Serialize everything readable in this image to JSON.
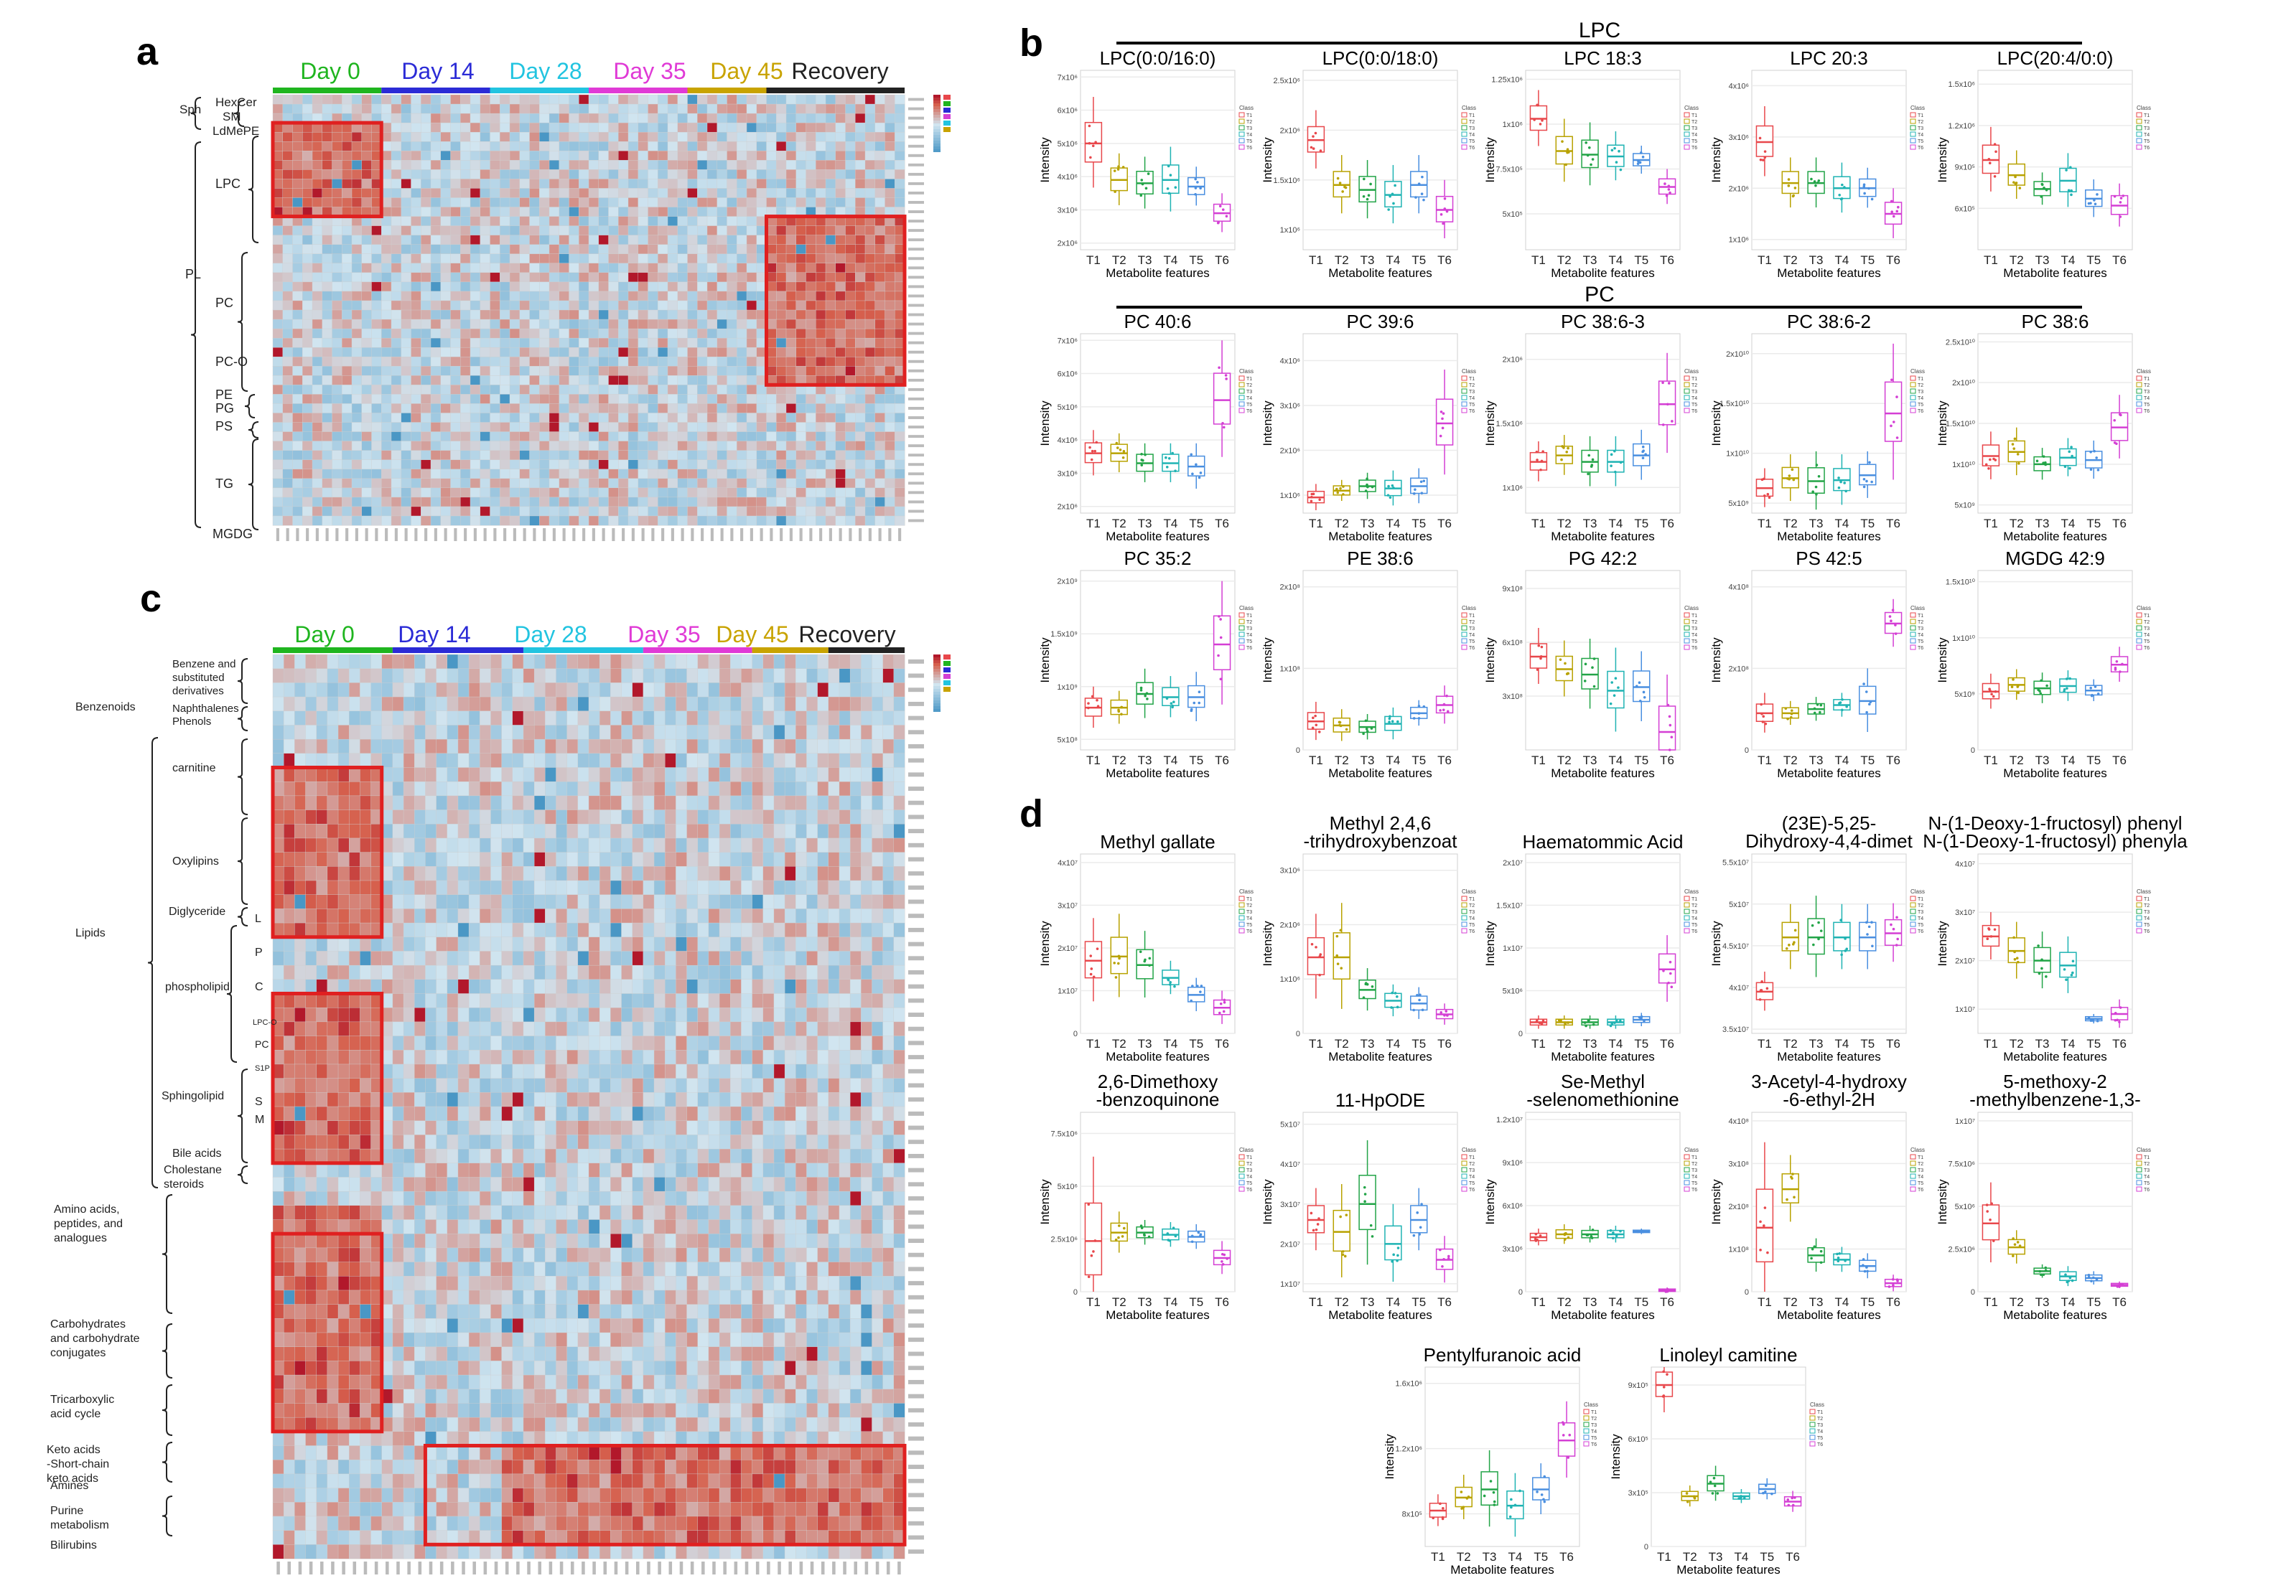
{
  "panels": {
    "a": {
      "letter": "a",
      "groups": [
        {
          "label": "Day 0",
          "color": "#1fb51f"
        },
        {
          "label": "Day 14",
          "color": "#2b2bd6"
        },
        {
          "label": "Day 28",
          "color": "#22c4e0"
        },
        {
          "label": "Day 35",
          "color": "#e03ad6"
        },
        {
          "label": "Day 45",
          "color": "#c8a300"
        },
        {
          "label": "Recovery",
          "color": "#222222"
        }
      ],
      "class_labels": [
        "Sph",
        "HexCer",
        "SM",
        "LdMePE",
        "LPC",
        "PL",
        "PC",
        "PC-O",
        "PE",
        "PG",
        "PS",
        "TG",
        "MGDG"
      ],
      "rows": 46,
      "cols": 64
    },
    "b": {
      "letter": "b",
      "header_lpc": "LPC",
      "header_pc": "PC",
      "x_axis_title": "Metabolite features",
      "y_axis_title": "Intensity",
      "legend_title": "Class",
      "tick_labels": [
        "T1",
        "T2",
        "T3",
        "T4",
        "T5",
        "T6"
      ]
    },
    "c": {
      "letter": "c",
      "groups": [
        {
          "label": "Day 0",
          "color": "#1fb51f"
        },
        {
          "label": "Day 14",
          "color": "#2b2bd6"
        },
        {
          "label": "Day 28",
          "color": "#22c4e0"
        },
        {
          "label": "Day 35",
          "color": "#e03ad6"
        },
        {
          "label": "Day 45",
          "color": "#c8a300"
        },
        {
          "label": "Recovery",
          "color": "#222222"
        }
      ],
      "class_labels": [
        "Benzene and substituted derivatives",
        "Benzenoids",
        "Naphthalenes",
        "Phenols",
        "carnitine",
        "Oxylipins",
        "Lipids",
        "Diglyceride",
        "L",
        "P",
        "phospholipid",
        "C",
        "LPC-O",
        "PC",
        "S1P",
        "Sphingolipid",
        "S",
        "M",
        "Bile acids",
        "Cholestane steroids",
        "Amino acids, peptides, and analogues",
        "Carbohydrates and carbohydrate conjugates",
        "Tricarboxylic acid cycle",
        "Keto acids -Short-chain keto acids",
        "Amines",
        "Purine metabolism",
        "Bilirubins"
      ],
      "rows": 64,
      "cols": 58
    },
    "d": {
      "letter": "d"
    }
  },
  "chart_data": [
    {
      "type": "box",
      "panel": "b",
      "title": "LPC(0:0/16:0)",
      "y_ticks": [
        "2x10⁶",
        "3x10⁶",
        "4x10⁶",
        "5x10⁶",
        "6x10⁶",
        "7x10⁶"
      ],
      "y_tick_values": [
        2,
        3,
        4,
        5,
        6,
        7
      ],
      "ylim": [
        1.8,
        7.2
      ],
      "medians": [
        5.0,
        3.9,
        3.8,
        3.9,
        3.7,
        2.9
      ],
      "spread": [
        0.7,
        0.4,
        0.4,
        0.5,
        0.3,
        0.3
      ]
    },
    {
      "type": "box",
      "panel": "b",
      "title": "LPC(0:0/18:0)",
      "y_ticks": [
        "1x10⁶",
        "1.5x10⁶",
        "2x10⁶",
        "2.5x10⁶"
      ],
      "y_tick_values": [
        1,
        1.5,
        2,
        2.5
      ],
      "ylim": [
        0.8,
        2.6
      ],
      "medians": [
        1.9,
        1.45,
        1.4,
        1.35,
        1.45,
        1.2
      ],
      "spread": [
        0.15,
        0.15,
        0.15,
        0.15,
        0.15,
        0.15
      ]
    },
    {
      "type": "box",
      "panel": "b",
      "title": "LPC 18:3",
      "y_ticks": [
        "5x10⁵",
        "7.5x10⁵",
        "1x10⁶",
        "1.25x10⁶"
      ],
      "y_tick_values": [
        5,
        7.5,
        10,
        12.5
      ],
      "ylim": [
        3,
        13
      ],
      "medians": [
        10.3,
        8.5,
        8.3,
        8.2,
        8.0,
        6.5
      ],
      "spread": [
        0.8,
        0.9,
        0.9,
        0.7,
        0.4,
        0.5
      ]
    },
    {
      "type": "box",
      "panel": "b",
      "title": "LPC 20:3",
      "y_ticks": [
        "1x10⁶",
        "2x10⁶",
        "3x10⁶",
        "4x10⁶"
      ],
      "y_tick_values": [
        1,
        2,
        3,
        4
      ],
      "ylim": [
        0.8,
        4.3
      ],
      "medians": [
        2.9,
        2.1,
        2.1,
        2.0,
        2.0,
        1.5
      ],
      "spread": [
        0.35,
        0.25,
        0.25,
        0.25,
        0.2,
        0.25
      ]
    },
    {
      "type": "box",
      "panel": "b",
      "title": "LPC(20:4/0:0)",
      "y_ticks": [
        "6x10⁵",
        "9x10⁵",
        "1.2x10⁶",
        "1.5x10⁶"
      ],
      "y_tick_values": [
        6,
        9,
        12,
        15
      ],
      "ylim": [
        3,
        16
      ],
      "medians": [
        9.5,
        8.4,
        7.4,
        8.0,
        6.7,
        6.2
      ],
      "spread": [
        1.2,
        0.9,
        0.6,
        1.0,
        0.7,
        0.8
      ]
    },
    {
      "type": "box",
      "panel": "b",
      "title": "PC 40:6",
      "y_ticks": [
        "2x10⁶",
        "3x10⁶",
        "4x10⁶",
        "5x10⁶",
        "6x10⁶",
        "7x10⁶"
      ],
      "y_tick_values": [
        2,
        3,
        4,
        5,
        6,
        7
      ],
      "ylim": [
        1.8,
        7.2
      ],
      "medians": [
        3.6,
        3.6,
        3.3,
        3.3,
        3.2,
        5.2
      ],
      "spread": [
        0.35,
        0.3,
        0.3,
        0.3,
        0.35,
        0.9
      ]
    },
    {
      "type": "box",
      "panel": "b",
      "title": "PC 39:6",
      "y_ticks": [
        "1x10⁶",
        "2x10⁶",
        "3x10⁶",
        "4x10⁶"
      ],
      "y_tick_values": [
        1,
        2,
        3,
        4
      ],
      "ylim": [
        0.6,
        4.6
      ],
      "medians": [
        0.95,
        1.1,
        1.2,
        1.15,
        1.2,
        2.6
      ],
      "spread": [
        0.15,
        0.12,
        0.15,
        0.2,
        0.2,
        0.6
      ]
    },
    {
      "type": "box",
      "panel": "b",
      "title": "PC 38:6-3",
      "y_ticks": [
        "1x10⁶",
        "1.5x10⁶",
        "2x10⁶"
      ],
      "y_tick_values": [
        1,
        1.5,
        2
      ],
      "ylim": [
        0.8,
        2.2
      ],
      "medians": [
        1.2,
        1.25,
        1.2,
        1.2,
        1.25,
        1.65
      ],
      "spread": [
        0.08,
        0.08,
        0.1,
        0.1,
        0.1,
        0.2
      ]
    },
    {
      "type": "box",
      "panel": "b",
      "title": "PC 38:6-2",
      "y_ticks": [
        "5x10⁹",
        "1x10¹⁰",
        "1.5x10¹⁰",
        "2x10¹⁰"
      ],
      "y_tick_values": [
        5,
        10,
        15,
        20
      ],
      "ylim": [
        4,
        22
      ],
      "medians": [
        6.5,
        7.5,
        7.2,
        7.3,
        7.8,
        14
      ],
      "spread": [
        1.0,
        1.2,
        1.5,
        1.3,
        1.2,
        3.5
      ]
    },
    {
      "type": "box",
      "panel": "b",
      "title": "PC 38:6",
      "y_ticks": [
        "5x10⁹",
        "1x10¹⁰",
        "1.5x10¹⁰",
        "2x10¹⁰",
        "2.5x10¹⁰"
      ],
      "y_tick_values": [
        5,
        10,
        15,
        20,
        25
      ],
      "ylim": [
        4,
        26
      ],
      "medians": [
        11,
        11.5,
        10,
        10.8,
        10.5,
        14.5
      ],
      "spread": [
        1.5,
        1.5,
        1.0,
        1.2,
        1.2,
        2.0
      ]
    },
    {
      "type": "box",
      "panel": "b",
      "title": "PC 35:2",
      "y_ticks": [
        "5x10⁸",
        "1x10⁹",
        "1.5x10⁹",
        "2x10⁹"
      ],
      "y_tick_values": [
        5,
        10,
        15,
        20
      ],
      "ylim": [
        4,
        21
      ],
      "medians": [
        8.0,
        8.0,
        9.3,
        9.0,
        9.0,
        14
      ],
      "spread": [
        1.0,
        0.8,
        1.2,
        1.0,
        1.2,
        3.0
      ]
    },
    {
      "type": "box",
      "panel": "b",
      "title": "PE 38:6",
      "y_ticks": [
        "0",
        "1x10⁸",
        "2x10⁸"
      ],
      "y_tick_values": [
        0,
        1,
        2
      ],
      "ylim": [
        0,
        2.2
      ],
      "medians": [
        0.35,
        0.3,
        0.28,
        0.32,
        0.45,
        0.55
      ],
      "spread": [
        0.12,
        0.1,
        0.08,
        0.1,
        0.08,
        0.12
      ]
    },
    {
      "type": "box",
      "panel": "b",
      "title": "PG 42:2",
      "y_ticks": [
        "3x10⁸",
        "6x10⁸",
        "9x10⁸"
      ],
      "y_tick_values": [
        3,
        6,
        9
      ],
      "ylim": [
        0,
        10
      ],
      "medians": [
        5.2,
        4.5,
        4.2,
        3.3,
        3.5,
        1.0
      ],
      "spread": [
        0.8,
        0.8,
        1.0,
        1.2,
        1.0,
        1.6
      ]
    },
    {
      "type": "box",
      "panel": "b",
      "title": "PS 42:5",
      "y_ticks": [
        "0",
        "2x10⁸",
        "4x10⁸"
      ],
      "y_tick_values": [
        0,
        2,
        4
      ],
      "ylim": [
        0,
        4.4
      ],
      "medians": [
        0.9,
        0.9,
        1.0,
        1.1,
        1.2,
        3.1
      ],
      "spread": [
        0.25,
        0.15,
        0.15,
        0.15,
        0.4,
        0.3
      ]
    },
    {
      "type": "box",
      "panel": "b",
      "title": "MGDG 42:9",
      "y_ticks": [
        "0",
        "5x10⁹",
        "1x10¹⁰",
        "1.5x10¹⁰"
      ],
      "y_tick_values": [
        0,
        5,
        10,
        15
      ],
      "ylim": [
        0,
        16
      ],
      "medians": [
        5.2,
        5.8,
        5.5,
        5.7,
        5.3,
        7.6
      ],
      "spread": [
        0.8,
        0.7,
        0.7,
        0.7,
        0.5,
        0.8
      ]
    },
    {
      "type": "box",
      "panel": "d",
      "title": "Methyl gallate",
      "y_ticks": [
        "0",
        "1x10⁷",
        "2x10⁷",
        "3x10⁷",
        "4x10⁷"
      ],
      "y_tick_values": [
        0,
        1,
        2,
        3,
        4
      ],
      "ylim": [
        0,
        4.2
      ],
      "medians": [
        1.7,
        1.8,
        1.6,
        1.3,
        0.9,
        0.6
      ],
      "spread": [
        0.5,
        0.5,
        0.4,
        0.2,
        0.2,
        0.2
      ]
    },
    {
      "type": "box",
      "panel": "d",
      "title": "Methyl 2,4,6 -trihydroxybenzoat",
      "y_ticks": [
        "0",
        "1x10⁶",
        "2x10⁶",
        "3x10⁶"
      ],
      "y_tick_values": [
        0,
        1,
        2,
        3
      ],
      "ylim": [
        0,
        3.3
      ],
      "medians": [
        1.4,
        1.4,
        0.8,
        0.6,
        0.55,
        0.35
      ],
      "spread": [
        0.4,
        0.5,
        0.2,
        0.15,
        0.15,
        0.1
      ]
    },
    {
      "type": "box",
      "panel": "d",
      "title": "Haematommic Acid",
      "y_ticks": [
        "0",
        "5x10⁶",
        "1x10⁷",
        "1.5x10⁷",
        "2x10⁷"
      ],
      "y_tick_values": [
        0,
        5,
        10,
        15,
        20
      ],
      "ylim": [
        0,
        21
      ],
      "medians": [
        1.3,
        1.3,
        1.3,
        1.3,
        1.6,
        7.5
      ],
      "spread": [
        0.4,
        0.4,
        0.4,
        0.4,
        0.4,
        2.0
      ]
    },
    {
      "type": "box",
      "panel": "d",
      "title": "(23E)-5,25- Dihydroxy-4,4-dimet",
      "y_ticks": [
        "3.5x10⁷",
        "4x10⁷",
        "4.5x10⁷",
        "5x10⁷",
        "5.5x10⁷"
      ],
      "y_tick_values": [
        3.5,
        4,
        4.5,
        5,
        5.5
      ],
      "ylim": [
        3.45,
        5.6
      ],
      "medians": [
        3.95,
        4.6,
        4.6,
        4.6,
        4.6,
        4.65
      ],
      "spread": [
        0.12,
        0.2,
        0.25,
        0.2,
        0.2,
        0.18
      ]
    },
    {
      "type": "box",
      "panel": "d",
      "title": "N-(1-Deoxy-1-fructosyl) phenyla",
      "y_ticks": [
        "1x10⁷",
        "2x10⁷",
        "3x10⁷",
        "4x10⁷"
      ],
      "y_tick_values": [
        1,
        2,
        3,
        4
      ],
      "ylim": [
        0.5,
        4.2
      ],
      "medians": [
        2.5,
        2.2,
        2.0,
        1.9,
        0.8,
        0.9
      ],
      "spread": [
        0.25,
        0.3,
        0.3,
        0.3,
        0.05,
        0.15
      ]
    },
    {
      "type": "box",
      "panel": "d",
      "title": "2,6-Dimethoxy -benzoquinone",
      "y_ticks": [
        "0",
        "2.5x10⁶",
        "5x10⁶",
        "7.5x10⁶"
      ],
      "y_tick_values": [
        0,
        2.5,
        5,
        7.5
      ],
      "ylim": [
        0,
        8.5
      ],
      "medians": [
        2.4,
        2.8,
        2.8,
        2.7,
        2.6,
        1.6
      ],
      "spread": [
        2.0,
        0.5,
        0.3,
        0.3,
        0.3,
        0.4
      ]
    },
    {
      "type": "box",
      "panel": "d",
      "title": "11-HpODE",
      "y_ticks": [
        "1x10⁷",
        "2x10⁷",
        "3x10⁷",
        "4x10⁷",
        "5x10⁷"
      ],
      "y_tick_values": [
        1,
        2,
        3,
        4,
        5
      ],
      "ylim": [
        0.8,
        5.3
      ],
      "medians": [
        2.6,
        2.3,
        3.0,
        2.0,
        2.6,
        1.6
      ],
      "spread": [
        0.4,
        0.6,
        0.8,
        0.5,
        0.4,
        0.3
      ]
    },
    {
      "type": "box",
      "panel": "d",
      "title": "Se-Methyl -selenomethionine",
      "y_ticks": [
        "0",
        "3x10⁶",
        "6x10⁶",
        "9x10⁶",
        "1.2x10⁷"
      ],
      "y_tick_values": [
        0,
        3,
        6,
        9,
        12
      ],
      "ylim": [
        0,
        12.5
      ],
      "medians": [
        3.8,
        4.0,
        4.0,
        4.0,
        4.2,
        0.1
      ],
      "spread": [
        0.3,
        0.35,
        0.3,
        0.3,
        0.1,
        0.1
      ]
    },
    {
      "type": "box",
      "panel": "d",
      "title": "3-Acetyl-4-hydroxy -6-ethyl-2H",
      "y_ticks": [
        "0",
        "1x10⁸",
        "2x10⁸",
        "3x10⁸",
        "4x10⁸"
      ],
      "y_tick_values": [
        0,
        1,
        2,
        3,
        4
      ],
      "ylim": [
        0,
        4.2
      ],
      "medians": [
        1.5,
        2.4,
        0.85,
        0.75,
        0.6,
        0.2
      ],
      "spread": [
        1.0,
        0.4,
        0.2,
        0.15,
        0.15,
        0.1
      ]
    },
    {
      "type": "box",
      "panel": "d",
      "title": "5-methoxy-2 -methylbenzene-1,3-",
      "y_ticks": [
        "0",
        "2.5x10⁶",
        "5x10⁶",
        "7.5x10⁶",
        "1x10⁷"
      ],
      "y_tick_values": [
        0,
        2.5,
        5,
        7.5,
        10
      ],
      "ylim": [
        0,
        10.5
      ],
      "medians": [
        4.0,
        2.6,
        1.2,
        0.9,
        0.8,
        0.4
      ],
      "spread": [
        1.2,
        0.5,
        0.2,
        0.3,
        0.2,
        0.1
      ]
    },
    {
      "type": "box",
      "panel": "d",
      "title": "Pentylfuranoic acid",
      "y_ticks": [
        "8x10⁵",
        "1.2x10⁶",
        "1.6x10⁶"
      ],
      "y_tick_values": [
        0.8,
        1.2,
        1.6
      ],
      "ylim": [
        0.6,
        1.7
      ],
      "medians": [
        0.82,
        0.9,
        0.95,
        0.85,
        0.95,
        1.25
      ],
      "spread": [
        0.05,
        0.07,
        0.12,
        0.1,
        0.08,
        0.12
      ]
    },
    {
      "type": "box",
      "panel": "d",
      "title": "Linoleyl camitine",
      "y_ticks": [
        "0",
        "3x10⁵",
        "6x10⁵",
        "9x10⁵"
      ],
      "y_tick_values": [
        0,
        3,
        6,
        9
      ],
      "ylim": [
        0,
        10
      ],
      "medians": [
        9.0,
        2.8,
        3.5,
        2.8,
        3.2,
        2.5
      ],
      "spread": [
        0.8,
        0.3,
        0.5,
        0.2,
        0.3,
        0.3
      ]
    }
  ],
  "colors": {
    "series": [
      "#e8474b",
      "#b8a200",
      "#22a447",
      "#1fb3b3",
      "#4a8fe0",
      "#d43fd4"
    ],
    "heat_pos": "#d6604d",
    "heat_neg": "#4393c3",
    "heat_mid": "#d1e5f0",
    "highlight": "#e02020"
  }
}
